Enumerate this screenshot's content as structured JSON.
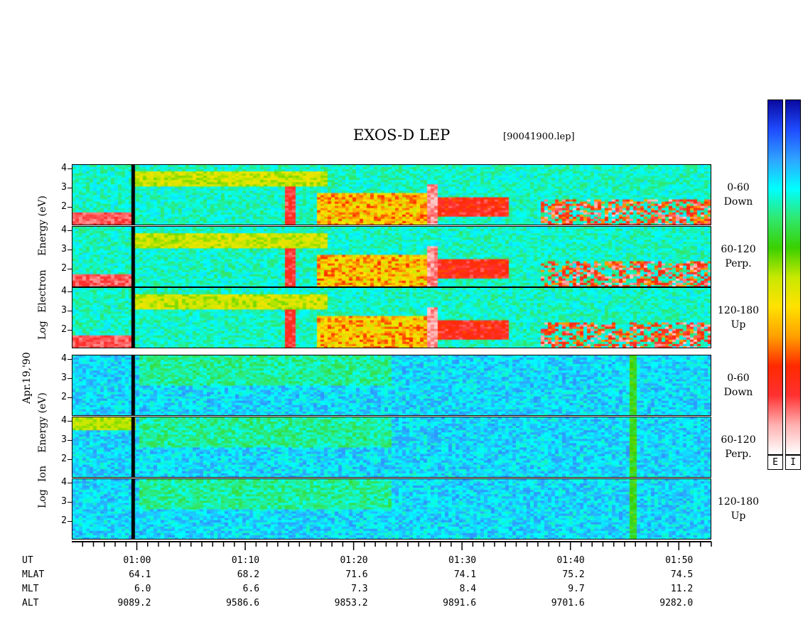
{
  "header": {
    "title": "EXOS-D LEP",
    "file": "[90041900.lep]"
  },
  "left_labels": {
    "electron_line1": "Log",
    "electron_line2": "Electron",
    "electron_line3": "Energy (eV)",
    "date": "Apr.19,'90",
    "ion_line1": "Log",
    "ion_line2": "Ion",
    "ion_line3": "Energy (eV)"
  },
  "panel_labels": [
    {
      "range": "0-60",
      "dir": "Down"
    },
    {
      "range": "60-120",
      "dir": "Perp."
    },
    {
      "range": "120-180",
      "dir": "Up"
    },
    {
      "range": "0-60",
      "dir": "Down"
    },
    {
      "range": "60-120",
      "dir": "Perp."
    },
    {
      "range": "120-180",
      "dir": "Up"
    }
  ],
  "colorbar": {
    "labels": [
      "E",
      "I"
    ],
    "colors": [
      "#0a0aa0",
      "#1f4bff",
      "#2fa3ff",
      "#00ffff",
      "#30e870",
      "#3ad000",
      "#c8e800",
      "#ffe200",
      "#ffa000",
      "#ff2a00",
      "#ff3030",
      "#ffb0b0",
      "#ffffff"
    ]
  },
  "chart_data": {
    "type": "heatmap",
    "title": "EXOS-D LEP",
    "ylabel_electron": "Log Electron Energy (eV)",
    "ylabel_ion": "Log Ion Energy (eV)",
    "y_ticks": [
      "4",
      "3",
      "2"
    ],
    "ylim": [
      1,
      4
    ],
    "x_ticks": [
      "01:00",
      "01:10",
      "01:20",
      "01:30",
      "01:40",
      "01:50"
    ],
    "xlim_minutes": [
      54,
      113
    ],
    "ephemeris": {
      "rows": [
        {
          "name": "UT",
          "values": [
            "01:00",
            "01:10",
            "01:20",
            "01:30",
            "01:40",
            "01:50"
          ]
        },
        {
          "name": "MLAT",
          "values": [
            "64.1",
            "68.2",
            "71.6",
            "74.1",
            "75.2",
            "74.5"
          ]
        },
        {
          "name": "MLT",
          "values": [
            "6.0",
            "6.6",
            "7.3",
            "8.4",
            "9.7",
            "11.2"
          ]
        },
        {
          "name": "ALT",
          "values": [
            "9089.2",
            "9586.6",
            "9853.2",
            "9891.6",
            "9701.6",
            "9282.0"
          ]
        }
      ]
    },
    "data_gap_minute": 59.5
  }
}
